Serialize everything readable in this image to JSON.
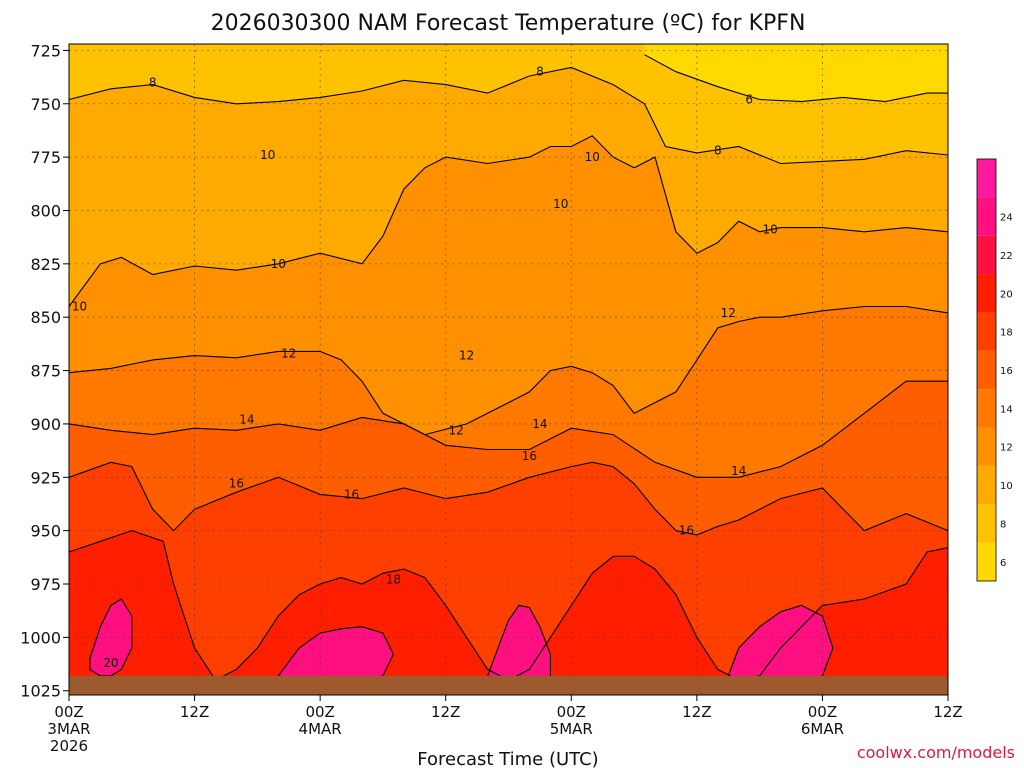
{
  "colors": {
    "bands": [
      "#ffd900",
      "#ffc200",
      "#ffaa00",
      "#ff9000",
      "#ff7800",
      "#ff5e00",
      "#ff3f00",
      "#ff1f00",
      "#ff1040",
      "#ff0f80",
      "#ff1aa0"
    ],
    "ground": "#9e5a2e",
    "contour": "#000000",
    "credit": "#e0193c"
  },
  "chart_data": {
    "type": "heatmap",
    "title": "2026030300 NAM Forecast Temperature (ºC) for KPFN",
    "xlabel": "Forecast Time (UTC)",
    "ylabel": "",
    "x_ticks": [
      {
        "hour": 0,
        "lines": [
          "00Z",
          "3MAR",
          "2026"
        ]
      },
      {
        "hour": 12,
        "lines": [
          "12Z"
        ]
      },
      {
        "hour": 24,
        "lines": [
          "00Z",
          "4MAR"
        ]
      },
      {
        "hour": 36,
        "lines": [
          "12Z"
        ]
      },
      {
        "hour": 48,
        "lines": [
          "00Z",
          "5MAR"
        ]
      },
      {
        "hour": 60,
        "lines": [
          "12Z"
        ]
      },
      {
        "hour": 72,
        "lines": [
          "00Z",
          "6MAR"
        ]
      },
      {
        "hour": 84,
        "lines": [
          "12Z"
        ]
      }
    ],
    "xlim": [
      0,
      84
    ],
    "y_ticks": [
      725,
      750,
      775,
      800,
      825,
      850,
      875,
      900,
      925,
      950,
      975,
      1000,
      1025
    ],
    "ylim": [
      722,
      1027
    ],
    "ground_level_hPa": 1018,
    "colorbar": {
      "min": 5,
      "max": 27,
      "labels": [
        6,
        8,
        10,
        12,
        14,
        16,
        18,
        20,
        22,
        24
      ]
    },
    "contour_levels": [
      8,
      10,
      12,
      14,
      16,
      18
    ],
    "contours": [
      {
        "level": 6,
        "x": [
          55,
          58,
          62,
          66,
          70,
          74,
          78,
          82,
          84
        ],
        "y": [
          727,
          735,
          742,
          748,
          749,
          747,
          749,
          745,
          745
        ]
      },
      {
        "level": 8,
        "x": [
          0,
          4,
          8,
          12,
          16,
          20,
          24,
          28,
          32,
          36,
          40,
          44,
          48,
          52,
          55,
          57,
          60,
          64,
          68,
          72,
          76,
          80,
          84
        ],
        "y": [
          748,
          743,
          741,
          747,
          750,
          749,
          747,
          744,
          739,
          741,
          745,
          737,
          733,
          741,
          750,
          770,
          773,
          770,
          778,
          777,
          776,
          772,
          774
        ]
      },
      {
        "level": 10,
        "x": [
          0,
          3,
          5,
          8,
          12,
          16,
          20,
          24,
          28,
          30,
          32,
          34,
          36,
          40,
          44,
          46,
          48,
          50,
          52,
          54,
          56,
          58,
          60,
          62,
          64,
          66,
          68,
          72,
          76,
          80,
          84
        ],
        "y": [
          845,
          825,
          822,
          830,
          826,
          828,
          825,
          820,
          825,
          812,
          790,
          780,
          775,
          778,
          775,
          770,
          770,
          765,
          775,
          780,
          775,
          810,
          820,
          815,
          805,
          810,
          808,
          808,
          810,
          808,
          810
        ]
      },
      {
        "level": 12,
        "x": [
          0,
          4,
          8,
          12,
          16,
          20,
          24,
          26,
          28,
          30,
          34,
          38,
          40,
          44,
          46,
          48,
          50,
          52,
          54,
          58,
          60,
          62,
          64,
          66,
          68,
          72,
          76,
          80,
          84
        ],
        "y": [
          876,
          874,
          870,
          868,
          869,
          866,
          866,
          870,
          880,
          895,
          905,
          900,
          895,
          885,
          875,
          873,
          876,
          882,
          895,
          885,
          870,
          855,
          852,
          850,
          850,
          847,
          845,
          845,
          848
        ]
      },
      {
        "level": 14,
        "x": [
          0,
          4,
          8,
          12,
          16,
          20,
          24,
          28,
          32,
          36,
          40,
          44,
          48,
          52,
          56,
          60,
          64,
          68,
          72,
          76,
          80,
          84
        ],
        "y": [
          900,
          903,
          905,
          902,
          903,
          900,
          903,
          897,
          900,
          910,
          912,
          912,
          902,
          905,
          918,
          925,
          925,
          920,
          910,
          895,
          880,
          880
        ]
      },
      {
        "level": 16,
        "x": [
          0,
          4,
          6,
          8,
          10,
          12,
          16,
          20,
          24,
          28,
          32,
          36,
          40,
          44,
          48,
          50,
          52,
          54,
          56,
          58,
          60,
          62,
          64,
          68,
          72,
          76,
          80,
          84
        ],
        "y": [
          925,
          918,
          920,
          940,
          950,
          940,
          932,
          925,
          933,
          935,
          930,
          935,
          932,
          925,
          920,
          918,
          920,
          928,
          940,
          950,
          952,
          948,
          945,
          935,
          930,
          950,
          942,
          950
        ]
      },
      {
        "level": 18,
        "x": [
          0,
          3,
          6,
          9,
          10,
          12,
          14,
          16,
          18,
          20,
          22,
          24,
          26,
          28,
          30,
          32,
          34,
          36,
          38,
          40,
          42,
          44,
          46,
          48,
          50,
          52,
          54,
          56,
          58,
          60,
          62,
          64,
          66,
          68,
          72,
          76,
          80,
          82,
          84
        ],
        "y": [
          960,
          955,
          950,
          955,
          975,
          1005,
          1020,
          1015,
          1005,
          990,
          980,
          975,
          972,
          975,
          970,
          968,
          972,
          985,
          1000,
          1015,
          1020,
          1015,
          1000,
          985,
          970,
          962,
          962,
          968,
          980,
          1000,
          1015,
          1020,
          1018,
          1005,
          985,
          982,
          975,
          960,
          958
        ]
      },
      {
        "level": 20,
        "x": [
          2,
          3,
          4,
          5,
          6,
          6,
          5,
          4,
          3,
          2
        ],
        "y": [
          1010,
          995,
          985,
          982,
          990,
          1005,
          1015,
          1018,
          1018,
          1015
        ]
      },
      {
        "level": 20,
        "x": [
          20,
          22,
          24,
          26,
          28,
          30,
          31,
          30,
          28,
          26,
          24,
          22,
          20
        ],
        "y": [
          1018,
          1005,
          998,
          996,
          995,
          998,
          1008,
          1018,
          1020,
          1020,
          1020,
          1020,
          1018
        ]
      },
      {
        "level": 20,
        "x": [
          40,
          41,
          42,
          43,
          44,
          45,
          46,
          46,
          44,
          42,
          40
        ],
        "y": [
          1018,
          1005,
          992,
          985,
          986,
          995,
          1008,
          1020,
          1022,
          1022,
          1018
        ]
      },
      {
        "level": 20,
        "x": [
          63,
          64,
          66,
          68,
          70,
          72,
          73,
          72,
          70,
          68,
          66,
          64,
          63
        ],
        "y": [
          1018,
          1005,
          995,
          988,
          985,
          990,
          1005,
          1018,
          1022,
          1022,
          1022,
          1022,
          1018
        ]
      }
    ],
    "contour_labels": [
      {
        "text": "8",
        "x": 8,
        "y": 740
      },
      {
        "text": "8",
        "x": 45,
        "y": 735
      },
      {
        "text": "6",
        "x": 65,
        "y": 748
      },
      {
        "text": "8",
        "x": 62,
        "y": 772
      },
      {
        "text": "10",
        "x": 19,
        "y": 774
      },
      {
        "text": "10",
        "x": 50,
        "y": 775
      },
      {
        "text": "10",
        "x": 47,
        "y": 797
      },
      {
        "text": "10",
        "x": 67,
        "y": 809
      },
      {
        "text": "10",
        "x": 20,
        "y": 825
      },
      {
        "text": "10",
        "x": 1,
        "y": 845
      },
      {
        "text": "12",
        "x": 63,
        "y": 848
      },
      {
        "text": "12",
        "x": 21,
        "y": 867
      },
      {
        "text": "12",
        "x": 38,
        "y": 868
      },
      {
        "text": "12",
        "x": 37,
        "y": 903
      },
      {
        "text": "14",
        "x": 17,
        "y": 898
      },
      {
        "text": "14",
        "x": 45,
        "y": 900
      },
      {
        "text": "14",
        "x": 64,
        "y": 922
      },
      {
        "text": "16",
        "x": 16,
        "y": 928
      },
      {
        "text": "16",
        "x": 27,
        "y": 933
      },
      {
        "text": "16",
        "x": 44,
        "y": 915
      },
      {
        "text": "16",
        "x": 59,
        "y": 950
      },
      {
        "text": "18",
        "x": 31,
        "y": 973
      },
      {
        "text": "20",
        "x": 4,
        "y": 1012
      }
    ]
  },
  "credit": "coolwx.com/models"
}
